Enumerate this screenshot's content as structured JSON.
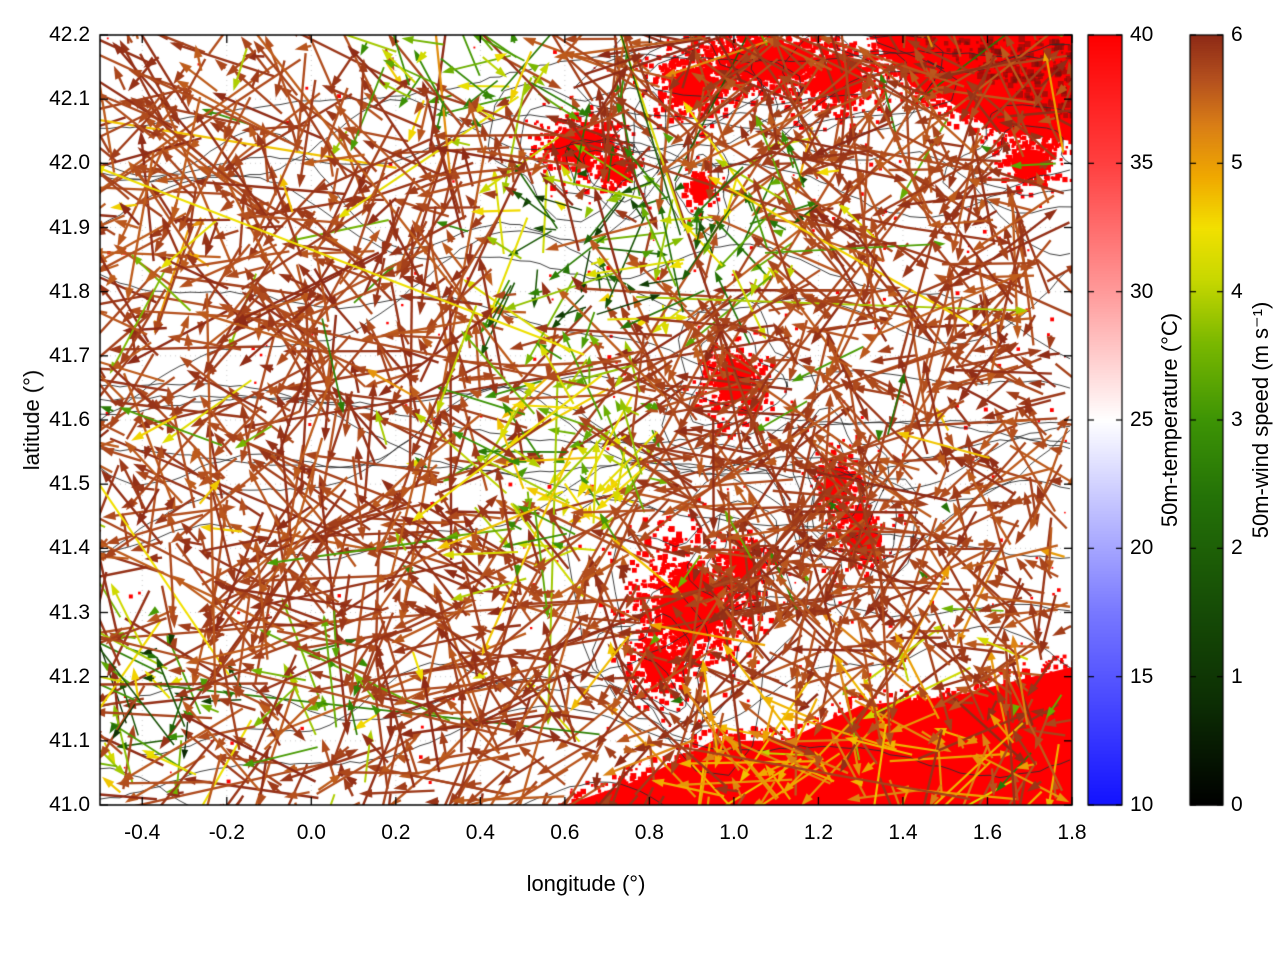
{
  "figure": {
    "background_color": "#ffffff",
    "description": "Map of 50 m wind vectors colored by wind speed over a 50 m temperature field with contour lines"
  },
  "chart_data": {
    "type": "heatmap",
    "subtype": "wind-vector-field-over-temperature-field-with-contours",
    "title": "",
    "xlabel": "longitude (°)",
    "ylabel": "latitude (°)",
    "xlim": [
      -0.5,
      1.8
    ],
    "ylim": [
      41.0,
      42.2
    ],
    "grid": "dotted",
    "xticks": {
      "values": [
        -0.4,
        -0.2,
        0.0,
        0.2,
        0.4,
        0.6,
        0.8,
        1.0,
        1.2,
        1.4,
        1.6,
        1.8
      ],
      "labels": [
        "-0.4",
        "-0.2",
        "0.0",
        "0.2",
        "0.4",
        "0.6",
        "0.8",
        "1.0",
        "1.2",
        "1.4",
        "1.6",
        "1.8"
      ]
    },
    "yticks": {
      "values": [
        41.0,
        41.1,
        41.2,
        41.3,
        41.4,
        41.5,
        41.6,
        41.7,
        41.8,
        41.9,
        42.0,
        42.1,
        42.2
      ],
      "labels": [
        "41.0",
        "41.1",
        "41.2",
        "41.3",
        "41.4",
        "41.5",
        "41.6",
        "41.7",
        "41.8",
        "41.9",
        "42.0",
        "42.1",
        "42.2"
      ]
    },
    "contour_color": "#2e2e2e",
    "contours": {
      "open_count": 18,
      "loops_around_warm_patches": true
    },
    "colorbars": [
      {
        "label": "50m-temperature (°C)",
        "min": 10,
        "max": 40,
        "ticks": [
          {
            "value": 10,
            "label": "10"
          },
          {
            "value": 15,
            "label": "15"
          },
          {
            "value": 20,
            "label": "20"
          },
          {
            "value": 25,
            "label": "25"
          },
          {
            "value": 30,
            "label": "30"
          },
          {
            "value": 35,
            "label": "35"
          },
          {
            "value": 40,
            "label": "40"
          }
        ],
        "stops": [
          {
            "value": 10,
            "color": "#1212ff"
          },
          {
            "value": 17.5,
            "color": "#7878ff"
          },
          {
            "value": 25,
            "color": "#ffffff"
          },
          {
            "value": 30,
            "color": "#ff9a9a"
          },
          {
            "value": 35,
            "color": "#ff4040"
          },
          {
            "value": 40,
            "color": "#fe0000"
          }
        ]
      },
      {
        "label": "50m-wind speed (m s⁻¹)",
        "min": 0,
        "max": 6,
        "ticks": [
          {
            "value": 0,
            "label": "0"
          },
          {
            "value": 1,
            "label": "1"
          },
          {
            "value": 2,
            "label": "2"
          },
          {
            "value": 3,
            "label": "3"
          },
          {
            "value": 4,
            "label": "4"
          },
          {
            "value": 5,
            "label": "5"
          },
          {
            "value": 6,
            "label": "6"
          }
        ],
        "stops": [
          {
            "value": 0,
            "color": "#000000"
          },
          {
            "value": 0.8,
            "color": "#0c2e04"
          },
          {
            "value": 1.6,
            "color": "#174f06"
          },
          {
            "value": 2.4,
            "color": "#247207"
          },
          {
            "value": 3.0,
            "color": "#3d9405"
          },
          {
            "value": 3.6,
            "color": "#7ab800"
          },
          {
            "value": 4.1,
            "color": "#c8d800"
          },
          {
            "value": 4.5,
            "color": "#f2e000"
          },
          {
            "value": 4.9,
            "color": "#f0a800"
          },
          {
            "value": 5.3,
            "color": "#d97e16"
          },
          {
            "value": 5.65,
            "color": "#b5511e"
          },
          {
            "value": 6.0,
            "color": "#8e2a16"
          }
        ]
      }
    ],
    "temperature_field": {
      "high_temp_color": "#ff0000",
      "shade_color": "#6e140c",
      "speckle_count": 420,
      "polygons": [
        {
          "name": "bottom-right-warm-region",
          "ragged": 550,
          "points": [
            [
              0.6,
              41.0
            ],
            [
              1.8,
              41.0
            ],
            [
              1.8,
              41.215
            ],
            [
              1.52,
              41.17
            ],
            [
              1.3,
              41.155
            ],
            [
              1.12,
              41.1
            ],
            [
              0.95,
              41.1
            ],
            [
              0.78,
              41.04
            ]
          ]
        },
        {
          "name": "top-right-warm-region",
          "ragged": 380,
          "points": [
            [
              1.33,
              42.2
            ],
            [
              1.8,
              42.2
            ],
            [
              1.8,
              42.035
            ],
            [
              1.62,
              42.05
            ],
            [
              1.5,
              42.1
            ],
            [
              1.42,
              42.12
            ]
          ]
        }
      ],
      "shade_region": {
        "x": [
          1.45,
          1.8
        ],
        "y": [
          42.07,
          42.2
        ]
      },
      "patches": [
        {
          "cx": 1.08,
          "cy": 42.16,
          "rx": 0.18,
          "ry": 0.055
        },
        {
          "cx": 0.9,
          "cy": 42.12,
          "rx": 0.1,
          "ry": 0.05
        },
        {
          "cx": 1.25,
          "cy": 42.13,
          "rx": 0.1,
          "ry": 0.05
        },
        {
          "cx": 0.63,
          "cy": 42.03,
          "rx": 0.1,
          "ry": 0.045
        },
        {
          "cx": 0.72,
          "cy": 41.99,
          "rx": 0.05,
          "ry": 0.03
        },
        {
          "cx": 0.92,
          "cy": 41.96,
          "rx": 0.035,
          "ry": 0.035
        },
        {
          "cx": 1.7,
          "cy": 42.0,
          "rx": 0.08,
          "ry": 0.04
        },
        {
          "cx": 1.0,
          "cy": 41.66,
          "rx": 0.075,
          "ry": 0.055
        },
        {
          "cx": 1.24,
          "cy": 41.5,
          "rx": 0.05,
          "ry": 0.05
        },
        {
          "cx": 1.3,
          "cy": 41.42,
          "rx": 0.06,
          "ry": 0.05
        },
        {
          "cx": 0.9,
          "cy": 41.31,
          "rx": 0.13,
          "ry": 0.1
        },
        {
          "cx": 0.82,
          "cy": 41.22,
          "rx": 0.06,
          "ry": 0.05
        },
        {
          "cx": 1.02,
          "cy": 41.38,
          "rx": 0.05,
          "ry": 0.04
        }
      ]
    },
    "wind_field": {
      "arrow_count": 2300,
      "dominant_speed_range": [
        5.55,
        6.0
      ],
      "direction_bias_deg": 180,
      "direction_spread_deg": 85,
      "random_direction_fraction": 0.3,
      "scatter_slow_fraction": 0.055,
      "scatter_slow_range": [
        2.4,
        5.2
      ],
      "slow_clusters": [
        {
          "cx": -0.33,
          "cy": 41.19,
          "rx": 0.18,
          "ry": 0.1,
          "smin": 0.4,
          "smax": 4.6
        },
        {
          "cx": -0.38,
          "cy": 41.07,
          "rx": 0.14,
          "ry": 0.06,
          "smin": 3.0,
          "smax": 4.8
        },
        {
          "cx": 0.05,
          "cy": 41.15,
          "rx": 0.13,
          "ry": 0.07,
          "smin": 2.6,
          "smax": 4.6
        },
        {
          "cx": 0.72,
          "cy": 41.87,
          "rx": 0.28,
          "ry": 0.13,
          "smin": 1.0,
          "smax": 4.6
        },
        {
          "cx": 0.62,
          "cy": 41.55,
          "rx": 0.22,
          "ry": 0.16,
          "smin": 2.8,
          "smax": 4.8
        },
        {
          "cx": 0.35,
          "cy": 42.14,
          "rx": 0.22,
          "ry": 0.08,
          "smin": 2.5,
          "smax": 4.7
        },
        {
          "cx": 1.05,
          "cy": 41.9,
          "rx": 0.18,
          "ry": 0.1,
          "smin": 1.5,
          "smax": 4.5
        },
        {
          "cx": 1.3,
          "cy": 41.06,
          "rx": 0.5,
          "ry": 0.11,
          "smin": 4.7,
          "smax": 5.3
        }
      ]
    }
  }
}
